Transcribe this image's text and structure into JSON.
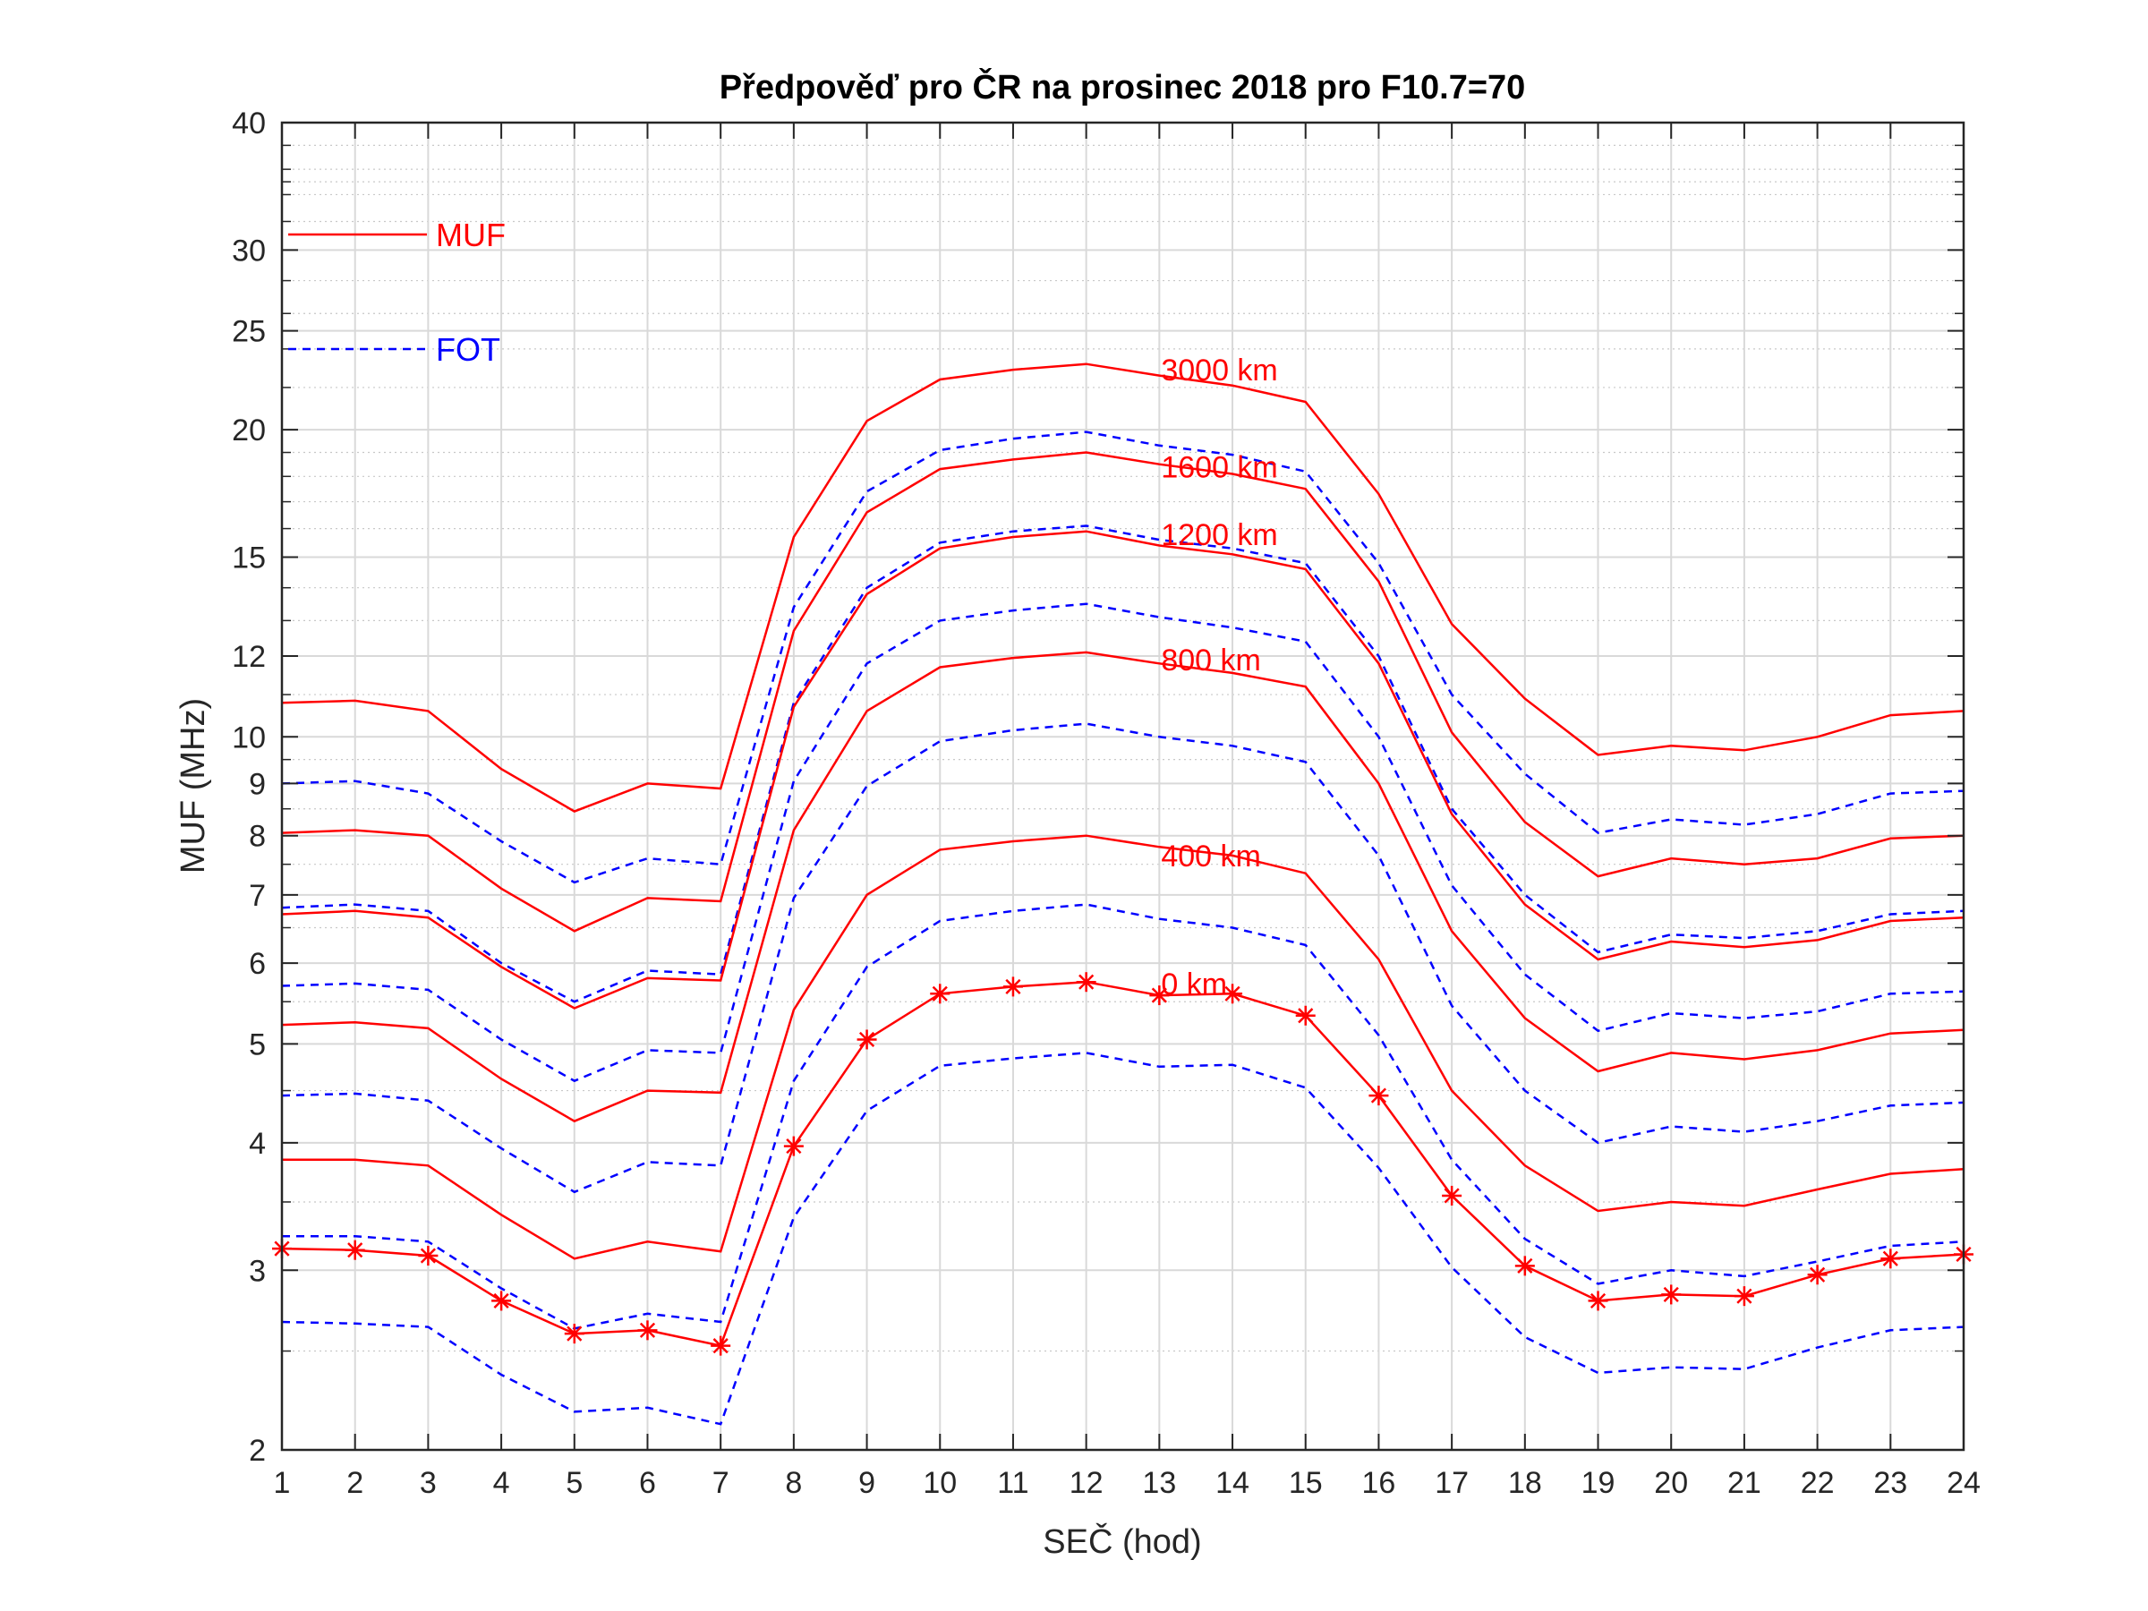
{
  "chart_data": {
    "type": "line",
    "title": "Předpověď pro ČR na prosinec 2018 pro F10.7=70",
    "xlabel": "SEČ (hod)",
    "ylabel": "MUF (MHz)",
    "x": [
      1,
      2,
      3,
      4,
      5,
      6,
      7,
      8,
      9,
      10,
      11,
      12,
      13,
      14,
      15,
      16,
      17,
      18,
      19,
      20,
      21,
      22,
      23,
      24
    ],
    "xlim": [
      1,
      24
    ],
    "ylim": [
      2,
      40
    ],
    "yscale": "log",
    "y_ticks": [
      2,
      3,
      4,
      5,
      6,
      7,
      8,
      9,
      10,
      12,
      15,
      20,
      25,
      30,
      40
    ],
    "y_tick_labels": [
      "2",
      "3",
      "4",
      "5",
      "6",
      "7",
      "8",
      "9",
      "10",
      "12",
      "15",
      "20",
      "25",
      "30",
      "40"
    ],
    "x_tick_labels": [
      "1",
      "2",
      "3",
      "4",
      "5",
      "6",
      "7",
      "8",
      "9",
      "10",
      "11",
      "12",
      "13",
      "14",
      "15",
      "16",
      "17",
      "18",
      "19",
      "20",
      "21",
      "22",
      "23",
      "24"
    ],
    "grid": "on (major solid, minor dotted)",
    "legend": {
      "placement": "top-left",
      "entries": [
        {
          "label": "MUF",
          "color": "#ff0000",
          "style": "solid"
        },
        {
          "label": "FOT",
          "color": "#0000ff",
          "style": "dashed"
        }
      ]
    },
    "distance_labels": [
      {
        "text": "3000 km",
        "x": 13.0,
        "y": 22.9
      },
      {
        "text": "1600 km",
        "x": 13.0,
        "y": 18.4
      },
      {
        "text": "1200 km",
        "x": 13.0,
        "y": 15.8
      },
      {
        "text": "800 km",
        "x": 13.0,
        "y": 11.9
      },
      {
        "text": "400 km",
        "x": 13.0,
        "y": 7.65
      },
      {
        "text": "0 km",
        "x": 13.0,
        "y": 5.73
      }
    ],
    "series": [
      {
        "type": "muf",
        "distance": "3000 km",
        "marker": "none",
        "values": [
          10.8,
          10.85,
          10.6,
          9.3,
          8.45,
          9.0,
          8.9,
          15.7,
          20.4,
          22.4,
          22.9,
          23.2,
          22.6,
          22.1,
          21.3,
          17.3,
          12.9,
          10.9,
          9.6,
          9.8,
          9.7,
          10.0,
          10.5,
          10.6
        ]
      },
      {
        "type": "fot",
        "distance": "3000 km",
        "marker": "none",
        "values": [
          9.0,
          9.05,
          8.8,
          7.9,
          7.2,
          7.6,
          7.5,
          13.4,
          17.4,
          19.1,
          19.6,
          19.9,
          19.3,
          18.9,
          18.2,
          14.8,
          11.0,
          9.2,
          8.05,
          8.3,
          8.2,
          8.4,
          8.8,
          8.85
        ]
      },
      {
        "type": "muf",
        "distance": "1600 km",
        "marker": "none",
        "values": [
          8.05,
          8.1,
          8.0,
          7.1,
          6.45,
          6.95,
          6.9,
          12.7,
          16.6,
          18.3,
          18.7,
          19.0,
          18.5,
          18.1,
          17.5,
          14.2,
          10.1,
          8.25,
          7.3,
          7.6,
          7.5,
          7.6,
          7.95,
          8.0
        ]
      },
      {
        "type": "fot",
        "distance": "1600 km",
        "marker": "none",
        "values": [
          6.8,
          6.85,
          6.75,
          6.0,
          5.5,
          5.9,
          5.85,
          10.8,
          14.0,
          15.5,
          15.9,
          16.1,
          15.6,
          15.3,
          14.8,
          12.0,
          8.5,
          7.0,
          6.15,
          6.4,
          6.35,
          6.45,
          6.7,
          6.75
        ]
      },
      {
        "type": "muf",
        "distance": "1200 km",
        "marker": "none",
        "values": [
          6.7,
          6.75,
          6.65,
          5.95,
          5.42,
          5.8,
          5.77,
          10.7,
          13.8,
          15.3,
          15.7,
          15.9,
          15.4,
          15.1,
          14.6,
          11.8,
          8.4,
          6.85,
          6.05,
          6.3,
          6.22,
          6.32,
          6.6,
          6.65
        ]
      },
      {
        "type": "fot",
        "distance": "1200 km",
        "marker": "none",
        "values": [
          5.7,
          5.73,
          5.65,
          5.05,
          4.6,
          4.93,
          4.9,
          9.05,
          11.8,
          13.0,
          13.3,
          13.5,
          13.1,
          12.8,
          12.4,
          10.0,
          7.15,
          5.85,
          5.15,
          5.36,
          5.3,
          5.38,
          5.6,
          5.63
        ]
      },
      {
        "type": "muf",
        "distance": "800 km",
        "marker": "none",
        "values": [
          5.22,
          5.25,
          5.18,
          4.62,
          4.2,
          4.5,
          4.48,
          8.1,
          10.6,
          11.7,
          11.95,
          12.1,
          11.8,
          11.55,
          11.2,
          9.0,
          6.45,
          5.3,
          4.7,
          4.9,
          4.83,
          4.93,
          5.12,
          5.16
        ]
      },
      {
        "type": "fot",
        "distance": "800 km",
        "marker": "none",
        "values": [
          4.45,
          4.47,
          4.4,
          3.95,
          3.58,
          3.83,
          3.8,
          6.95,
          8.95,
          9.9,
          10.15,
          10.3,
          10.0,
          9.8,
          9.45,
          7.65,
          5.45,
          4.5,
          4.0,
          4.15,
          4.1,
          4.2,
          4.35,
          4.38
        ]
      },
      {
        "type": "muf",
        "distance": "400 km",
        "marker": "none",
        "values": [
          3.85,
          3.85,
          3.8,
          3.4,
          3.08,
          3.2,
          3.13,
          5.4,
          7.0,
          7.75,
          7.9,
          8.0,
          7.8,
          7.65,
          7.35,
          6.05,
          4.5,
          3.8,
          3.43,
          3.5,
          3.47,
          3.6,
          3.73,
          3.77
        ]
      },
      {
        "type": "fot",
        "distance": "400 km",
        "marker": "none",
        "values": [
          3.24,
          3.24,
          3.2,
          2.88,
          2.63,
          2.72,
          2.67,
          4.6,
          5.95,
          6.6,
          6.75,
          6.85,
          6.63,
          6.5,
          6.25,
          5.1,
          3.85,
          3.22,
          2.91,
          3.0,
          2.96,
          3.06,
          3.17,
          3.2
        ]
      },
      {
        "type": "muf",
        "distance": "0 km",
        "marker": "asterisk",
        "values": [
          3.15,
          3.14,
          3.1,
          2.8,
          2.6,
          2.62,
          2.53,
          3.97,
          5.05,
          5.6,
          5.69,
          5.75,
          5.58,
          5.6,
          5.33,
          4.45,
          3.55,
          3.03,
          2.8,
          2.84,
          2.83,
          2.97,
          3.08,
          3.11
        ]
      },
      {
        "type": "fot",
        "distance": "0 km",
        "marker": "none",
        "values": [
          2.67,
          2.66,
          2.64,
          2.37,
          2.18,
          2.2,
          2.12,
          3.38,
          4.3,
          4.76,
          4.84,
          4.9,
          4.75,
          4.77,
          4.53,
          3.78,
          3.02,
          2.58,
          2.38,
          2.41,
          2.4,
          2.52,
          2.62,
          2.64
        ]
      }
    ]
  },
  "colors": {
    "muf": "#ff0000",
    "fot": "#0000ff",
    "axis": "#262626",
    "grid_major": "#d9d9d9",
    "grid_minor": "#c8c8c8"
  }
}
